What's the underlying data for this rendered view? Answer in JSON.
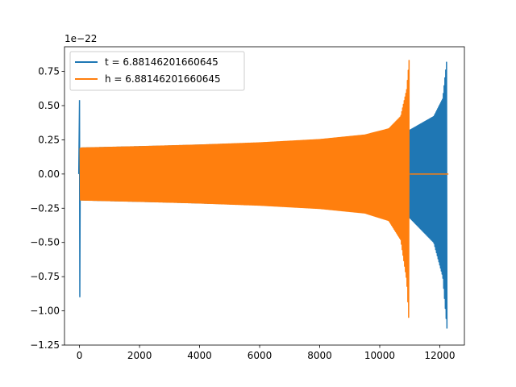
{
  "chart_data": {
    "type": "line",
    "title": "",
    "xlabel": "",
    "ylabel": "",
    "offset_text": "1e−22",
    "xlim": [
      -500,
      12820
    ],
    "ylim": [
      -1.25,
      0.93
    ],
    "x_ticks": [
      0,
      2000,
      4000,
      6000,
      8000,
      10000,
      12000
    ],
    "y_ticks": [
      -1.25,
      -1.0,
      -0.75,
      -0.5,
      -0.25,
      0.0,
      0.25,
      0.5,
      0.75
    ],
    "y_tick_labels": [
      "−1.25",
      "−1.00",
      "−0.75",
      "−0.50",
      "−0.25",
      "0.00",
      "0.25",
      "0.50",
      "0.75"
    ],
    "legend_placement": "upper-left",
    "grid": false,
    "series": [
      {
        "name": "t = 6.88146201660645",
        "color": "#1f77b4",
        "x_range": [
          0,
          12288
        ],
        "initial_spike": {
          "x": 0,
          "max": 0.54,
          "min": -0.9
        },
        "envelope_upper": [
          [
            60,
            0.19
          ],
          [
            3000,
            0.205
          ],
          [
            6000,
            0.225
          ],
          [
            8000,
            0.245
          ],
          [
            9500,
            0.265
          ],
          [
            11000,
            0.32
          ],
          [
            11800,
            0.42
          ],
          [
            12100,
            0.55
          ],
          [
            12250,
            0.87
          ]
        ],
        "envelope_lower": [
          [
            60,
            -0.19
          ],
          [
            3000,
            -0.205
          ],
          [
            6000,
            -0.225
          ],
          [
            8000,
            -0.245
          ],
          [
            9500,
            -0.265
          ],
          [
            11000,
            -0.32
          ],
          [
            11800,
            -0.5
          ],
          [
            12100,
            -0.75
          ],
          [
            12250,
            -1.16
          ]
        ]
      },
      {
        "name": "h = 6.88146201660645",
        "color": "#ff7f0e",
        "x_range": [
          0,
          10990
        ],
        "envelope_upper": [
          [
            20,
            0.19
          ],
          [
            2000,
            0.2
          ],
          [
            4000,
            0.212
          ],
          [
            6000,
            0.228
          ],
          [
            8000,
            0.252
          ],
          [
            9500,
            0.285
          ],
          [
            10300,
            0.33
          ],
          [
            10700,
            0.42
          ],
          [
            10900,
            0.62
          ],
          [
            10990,
            0.87
          ]
        ],
        "envelope_lower": [
          [
            20,
            -0.19
          ],
          [
            2000,
            -0.2
          ],
          [
            4000,
            -0.212
          ],
          [
            6000,
            -0.228
          ],
          [
            8000,
            -0.252
          ],
          [
            9500,
            -0.285
          ],
          [
            10300,
            -0.34
          ],
          [
            10700,
            -0.48
          ],
          [
            10900,
            -0.78
          ],
          [
            10990,
            -1.16
          ]
        ],
        "tail": {
          "x": [
            11000,
            12288
          ],
          "y": 0.0
        }
      }
    ]
  }
}
